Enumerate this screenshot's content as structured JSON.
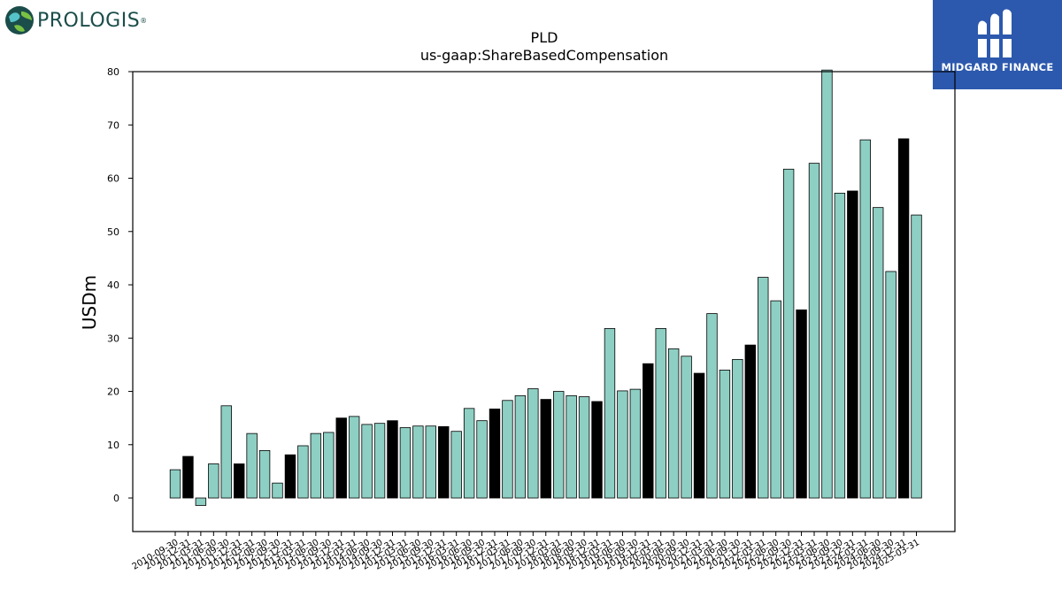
{
  "logos": {
    "left_brand": "PROLOGIS",
    "right_brand": "MIDGARD FINANCE"
  },
  "chart_data": {
    "type": "bar",
    "title": "PLD",
    "subtitle": "us-gaap:ShareBasedCompensation",
    "xlabel": "",
    "ylabel": "USDm",
    "ylim": [
      -6.3,
      80
    ],
    "yticks": [
      0,
      10,
      20,
      30,
      40,
      50,
      60,
      70,
      80
    ],
    "grid": false,
    "colors": {
      "quarter": "#8ecfc3",
      "fiscal_year_end": "#000000",
      "edge": "#000000"
    },
    "categories": [
      "2010-09-30",
      "2010-12-31",
      "2011-03-31",
      "2011-06-30",
      "2011-09-30",
      "2011-12-31",
      "2012-03-31",
      "2012-06-30",
      "2012-09-30",
      "2012-12-31",
      "2013-03-31",
      "2013-06-30",
      "2013-09-30",
      "2013-12-31",
      "2014-03-31",
      "2014-06-30",
      "2014-09-30",
      "2014-12-31",
      "2015-03-31",
      "2015-06-30",
      "2015-09-30",
      "2015-12-31",
      "2016-03-31",
      "2016-06-30",
      "2016-09-30",
      "2016-12-31",
      "2017-03-31",
      "2017-06-30",
      "2017-09-30",
      "2017-12-31",
      "2018-03-31",
      "2018-06-30",
      "2018-09-30",
      "2018-12-31",
      "2019-03-31",
      "2019-06-30",
      "2019-09-30",
      "2019-12-31",
      "2020-03-31",
      "2020-06-30",
      "2020-09-30",
      "2020-12-31",
      "2021-03-31",
      "2021-06-30",
      "2021-09-30",
      "2021-12-31",
      "2022-03-31",
      "2022-06-30",
      "2022-09-30",
      "2022-12-31",
      "2023-03-31",
      "2023-06-30",
      "2023-09-30",
      "2023-12-31",
      "2024-03-31",
      "2024-06-30",
      "2024-09-30",
      "2024-12-31",
      "2025-03-31"
    ],
    "values": [
      5.3,
      7.8,
      -1.4,
      6.4,
      17.3,
      6.4,
      12.1,
      8.9,
      2.8,
      8.1,
      9.8,
      12.1,
      12.3,
      15.0,
      15.3,
      13.8,
      14.0,
      14.5,
      13.2,
      13.5,
      13.5,
      13.4,
      12.5,
      16.8,
      14.5,
      16.7,
      18.3,
      19.2,
      20.5,
      18.5,
      20.0,
      19.2,
      19.0,
      18.1,
      31.8,
      20.1,
      20.4,
      25.2,
      31.8,
      28.0,
      26.6,
      23.4,
      34.6,
      24.0,
      26.0,
      28.7,
      41.4,
      37.0,
      61.7,
      35.3,
      62.8,
      80.3,
      57.2,
      57.6,
      67.2,
      54.5,
      42.5,
      67.4,
      53.1
    ],
    "fiscal_year_end": [
      false,
      true,
      false,
      false,
      false,
      true,
      false,
      false,
      false,
      true,
      false,
      false,
      false,
      true,
      false,
      false,
      false,
      true,
      false,
      false,
      false,
      true,
      false,
      false,
      false,
      true,
      false,
      false,
      false,
      true,
      false,
      false,
      false,
      true,
      false,
      false,
      false,
      true,
      false,
      false,
      false,
      true,
      false,
      false,
      false,
      true,
      false,
      false,
      false,
      true,
      false,
      false,
      false,
      true,
      false,
      false,
      false,
      true,
      false
    ]
  }
}
